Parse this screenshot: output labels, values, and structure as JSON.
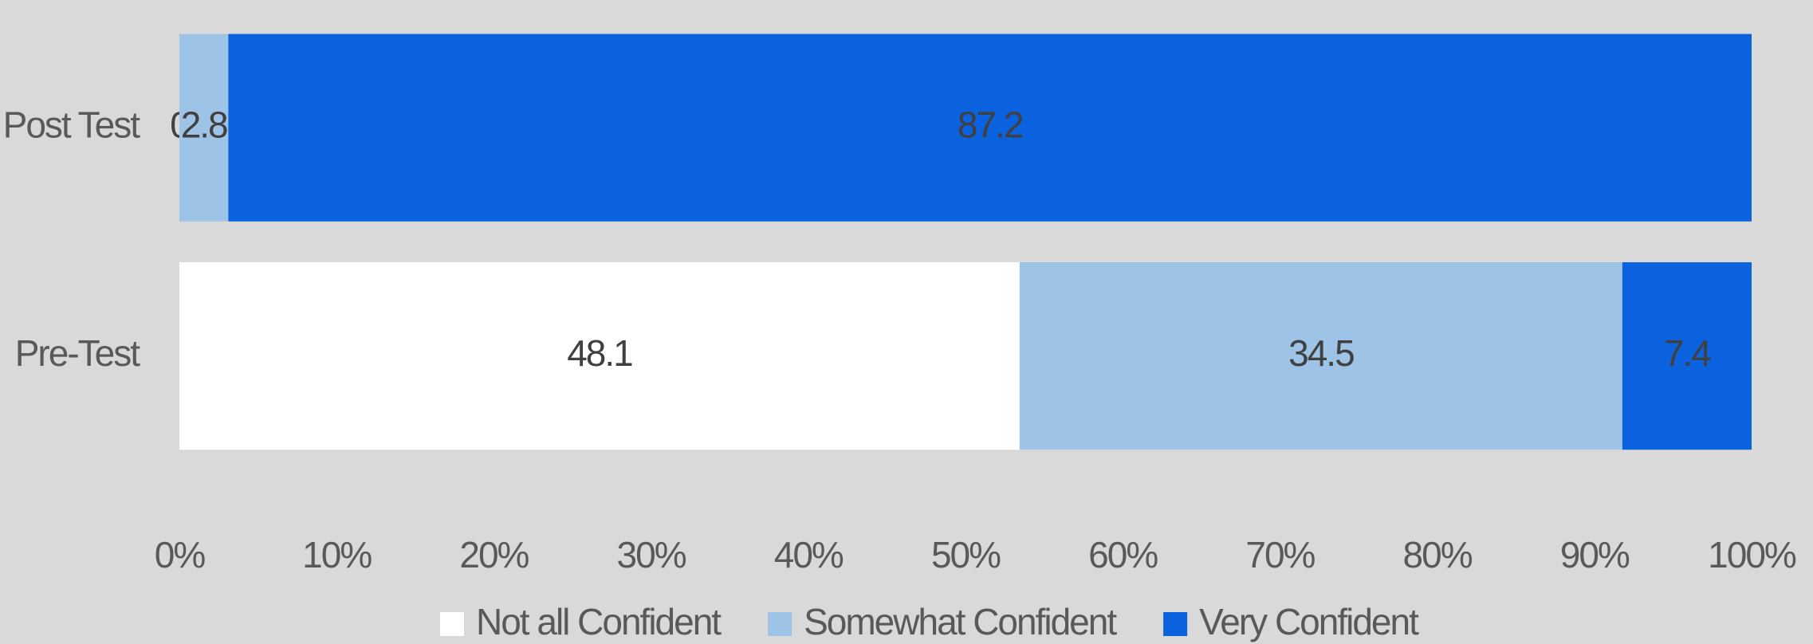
{
  "chart_data": {
    "type": "bar",
    "orientation": "horizontal",
    "stacking": "percent",
    "categories": [
      "Post Test",
      "Pre-Test"
    ],
    "series": [
      {
        "name": "Not all Confident",
        "color": "#ffffff",
        "values": [
          0,
          48.1
        ]
      },
      {
        "name": "Somewhat Confident",
        "color": "#9dc3e6",
        "values": [
          2.8,
          34.5
        ]
      },
      {
        "name": "Very Confident",
        "color": "#0b62de",
        "values": [
          87.2,
          7.4
        ]
      }
    ],
    "xlim": [
      0,
      100
    ],
    "xticks": [
      {
        "value": 0,
        "label": "0%"
      },
      {
        "value": 10,
        "label": "10%"
      },
      {
        "value": 20,
        "label": "20%"
      },
      {
        "value": 30,
        "label": "30%"
      },
      {
        "value": 40,
        "label": "40%"
      },
      {
        "value": 50,
        "label": "50%"
      },
      {
        "value": 60,
        "label": "60%"
      },
      {
        "value": 70,
        "label": "70%"
      },
      {
        "value": 80,
        "label": "80%"
      },
      {
        "value": 90,
        "label": "90%"
      },
      {
        "value": 100,
        "label": "100%"
      }
    ],
    "legend": "bottom"
  }
}
